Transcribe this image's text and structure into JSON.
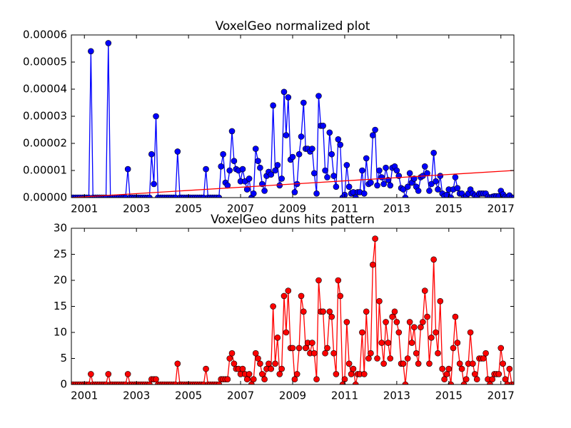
{
  "chart_data": [
    {
      "type": "line",
      "title": "VoxelGeo normalized plot",
      "xlim": [
        2000.5,
        2017.5
      ],
      "xticks": [
        2001,
        2003,
        2005,
        2007,
        2009,
        2011,
        2013,
        2015,
        2017
      ],
      "ylim": [
        0,
        6e-05
      ],
      "yticks": [
        {
          "value": 0,
          "label": "0.00000"
        },
        {
          "value": 1e-05,
          "label": "0.00001"
        },
        {
          "value": 2e-05,
          "label": "0.00002"
        },
        {
          "value": 3e-05,
          "label": "0.00003"
        },
        {
          "value": 4e-05,
          "label": "0.00004"
        },
        {
          "value": 5e-05,
          "label": "0.00005"
        },
        {
          "value": 6e-05,
          "label": "0.00006"
        }
      ],
      "series": [
        {
          "color": "#0000ff",
          "marker": true,
          "x": [
            2000.5,
            2000.58,
            2000.67,
            2000.75,
            2000.83,
            2000.92,
            2001,
            2001.08,
            2001.17,
            2001.25,
            2001.33,
            2001.42,
            2001.5,
            2001.58,
            2001.67,
            2001.75,
            2001.83,
            2001.92,
            2002,
            2002.08,
            2002.17,
            2002.25,
            2002.33,
            2002.42,
            2002.5,
            2002.58,
            2002.67,
            2002.75,
            2002.83,
            2002.92,
            2003,
            2003.08,
            2003.17,
            2003.25,
            2003.33,
            2003.42,
            2003.5,
            2003.58,
            2003.67,
            2003.75,
            2003.83,
            2003.92,
            2004,
            2004.08,
            2004.17,
            2004.25,
            2004.33,
            2004.42,
            2004.5,
            2004.58,
            2004.67,
            2004.75,
            2004.83,
            2004.92,
            2005,
            2005.08,
            2005.17,
            2005.25,
            2005.33,
            2005.42,
            2005.5,
            2005.58,
            2005.67,
            2005.75,
            2005.83,
            2005.92,
            2006,
            2006.08,
            2006.17,
            2006.25,
            2006.33,
            2006.42,
            2006.5,
            2006.58,
            2006.67,
            2006.75,
            2006.83,
            2006.92,
            2007,
            2007.08,
            2007.17,
            2007.25,
            2007.33,
            2007.42,
            2007.5,
            2007.58,
            2007.67,
            2007.75,
            2007.83,
            2007.92,
            2008,
            2008.08,
            2008.17,
            2008.25,
            2008.33,
            2008.42,
            2008.5,
            2008.58,
            2008.67,
            2008.75,
            2008.83,
            2008.92,
            2009,
            2009.08,
            2009.17,
            2009.25,
            2009.33,
            2009.42,
            2009.5,
            2009.58,
            2009.67,
            2009.75,
            2009.83,
            2009.92,
            2010,
            2010.08,
            2010.17,
            2010.25,
            2010.33,
            2010.42,
            2010.5,
            2010.58,
            2010.67,
            2010.75,
            2010.83,
            2010.92,
            2011,
            2011.08,
            2011.17,
            2011.25,
            2011.33,
            2011.42,
            2011.5,
            2011.58,
            2011.67,
            2011.75,
            2011.83,
            2011.92,
            2012,
            2012.08,
            2012.17,
            2012.25,
            2012.33,
            2012.42,
            2012.5,
            2012.58,
            2012.67,
            2012.75,
            2012.83,
            2012.92,
            2013,
            2013.08,
            2013.17,
            2013.25,
            2013.33,
            2013.42,
            2013.5,
            2013.58,
            2013.67,
            2013.75,
            2013.83,
            2013.92,
            2014,
            2014.08,
            2014.17,
            2014.25,
            2014.33,
            2014.42,
            2014.5,
            2014.58,
            2014.67,
            2014.75,
            2014.83,
            2014.92,
            2015,
            2015.08,
            2015.17,
            2015.25,
            2015.33,
            2015.42,
            2015.5,
            2015.58,
            2015.67,
            2015.75,
            2015.83,
            2015.92,
            2016,
            2016.08,
            2016.17,
            2016.25,
            2016.33,
            2016.42,
            2016.5,
            2016.58,
            2016.67,
            2016.75,
            2016.83,
            2016.92,
            2017,
            2017.08,
            2017.17,
            2017.25,
            2017.33,
            2017.42,
            2017.5
          ],
          "values": [
            0,
            0,
            0,
            0,
            0,
            0,
            0,
            0,
            0,
            5.4e-05,
            0,
            0,
            0,
            0,
            0,
            0,
            0,
            5.7e-05,
            0,
            0,
            0,
            0,
            0,
            0,
            0,
            0,
            1.05e-05,
            0,
            0,
            0,
            0,
            0,
            0,
            0,
            0,
            0,
            0,
            1.6e-05,
            5e-06,
            3e-05,
            0,
            0,
            0,
            0,
            0,
            0,
            0,
            0,
            0,
            1.7e-05,
            0,
            0,
            0,
            0,
            0,
            0,
            0,
            0,
            0,
            0,
            0,
            0,
            1.05e-05,
            0,
            0,
            0,
            0,
            0,
            0,
            1.15e-05,
            1.6e-05,
            5.5e-06,
            4.5e-06,
            1e-05,
            2.45e-05,
            1.35e-05,
            1.05e-05,
            1e-05,
            6e-06,
            1.05e-05,
            6e-06,
            3e-06,
            7e-06,
            0,
            1.5e-06,
            1.8e-05,
            1.35e-05,
            1.1e-05,
            5e-06,
            2.5e-06,
            8e-06,
            9.5e-06,
            8.5e-06,
            3.4e-05,
            1e-05,
            1.2e-05,
            4.5e-06,
            7e-06,
            3.9e-05,
            2.3e-05,
            3.7e-05,
            1.4e-05,
            1.5e-05,
            2e-06,
            5e-06,
            1.6e-05,
            2.25e-05,
            3.5e-05,
            1.8e-05,
            1.8e-05,
            1.7e-05,
            1.8e-05,
            9e-06,
            1.5e-06,
            3.75e-05,
            2.65e-05,
            2.65e-05,
            1e-05,
            7.5e-06,
            2.4e-05,
            1.6e-05,
            8e-06,
            4e-06,
            2.15e-05,
            1.95e-05,
            0,
            1e-06,
            1.2e-05,
            4e-06,
            1.5e-06,
            2e-06,
            0,
            2e-06,
            2e-06,
            1e-05,
            1.5e-06,
            1.45e-05,
            5e-06,
            5.5e-06,
            2.3e-05,
            2.5e-05,
            4.5e-06,
            1e-05,
            7.5e-06,
            5e-06,
            1.1e-05,
            6.5e-06,
            4.5e-06,
            1.1e-05,
            1.15e-05,
            1e-05,
            8e-06,
            3.5e-06,
            3e-06,
            0,
            4e-06,
            9e-06,
            5.5e-06,
            7e-06,
            4e-06,
            2.5e-06,
            7.5e-06,
            8e-06,
            1.15e-05,
            9e-06,
            2.5e-06,
            5e-06,
            1.65e-05,
            6e-06,
            3e-06,
            8e-06,
            1.5e-06,
            5e-07,
            1e-06,
            3e-06,
            0,
            3e-06,
            7.5e-06,
            3.5e-06,
            1.5e-06,
            1.5e-06,
            0,
            5e-07,
            1.5e-06,
            3e-06,
            1.5e-06,
            8e-07,
            3e-07,
            1.5e-06,
            1.5e-06,
            1.5e-06,
            1.5e-06,
            3e-07,
            0,
            3e-07,
            5e-07,
            5e-07,
            5e-07,
            2.5e-06,
            1.2e-06,
            3e-07,
            0,
            8e-07,
            0,
            0
          ]
        },
        {
          "color": "#ff0000",
          "marker": false,
          "x": [
            2000.5,
            2017.5
          ],
          "values": [
            0,
            1e-05
          ]
        }
      ]
    },
    {
      "type": "line",
      "title": "VoxelGeo duns hits pattern",
      "xlim": [
        2000.5,
        2017.5
      ],
      "xticks": [
        2001,
        2003,
        2005,
        2007,
        2009,
        2011,
        2013,
        2015,
        2017
      ],
      "ylim": [
        0,
        30
      ],
      "yticks": [
        0,
        5,
        10,
        15,
        20,
        25,
        30
      ],
      "series": [
        {
          "color": "#ff0000",
          "marker": true,
          "x": [
            2000.5,
            2000.58,
            2000.67,
            2000.75,
            2000.83,
            2000.92,
            2001,
            2001.08,
            2001.17,
            2001.25,
            2001.33,
            2001.42,
            2001.5,
            2001.58,
            2001.67,
            2001.75,
            2001.83,
            2001.92,
            2002,
            2002.08,
            2002.17,
            2002.25,
            2002.33,
            2002.42,
            2002.5,
            2002.58,
            2002.67,
            2002.75,
            2002.83,
            2002.92,
            2003,
            2003.08,
            2003.17,
            2003.25,
            2003.33,
            2003.42,
            2003.5,
            2003.58,
            2003.67,
            2003.75,
            2003.83,
            2003.92,
            2004,
            2004.08,
            2004.17,
            2004.25,
            2004.33,
            2004.42,
            2004.5,
            2004.58,
            2004.67,
            2004.75,
            2004.83,
            2004.92,
            2005,
            2005.08,
            2005.17,
            2005.25,
            2005.33,
            2005.42,
            2005.5,
            2005.58,
            2005.67,
            2005.75,
            2005.83,
            2005.92,
            2006,
            2006.08,
            2006.17,
            2006.25,
            2006.33,
            2006.42,
            2006.5,
            2006.58,
            2006.67,
            2006.75,
            2006.83,
            2006.92,
            2007,
            2007.08,
            2007.17,
            2007.25,
            2007.33,
            2007.42,
            2007.5,
            2007.58,
            2007.67,
            2007.75,
            2007.83,
            2007.92,
            2008,
            2008.08,
            2008.17,
            2008.25,
            2008.33,
            2008.42,
            2008.5,
            2008.58,
            2008.67,
            2008.75,
            2008.83,
            2008.92,
            2009,
            2009.08,
            2009.17,
            2009.25,
            2009.33,
            2009.42,
            2009.5,
            2009.58,
            2009.67,
            2009.75,
            2009.83,
            2009.92,
            2010,
            2010.08,
            2010.17,
            2010.25,
            2010.33,
            2010.42,
            2010.5,
            2010.58,
            2010.67,
            2010.75,
            2010.83,
            2010.92,
            2011,
            2011.08,
            2011.17,
            2011.25,
            2011.33,
            2011.42,
            2011.5,
            2011.58,
            2011.67,
            2011.75,
            2011.83,
            2011.92,
            2012,
            2012.08,
            2012.17,
            2012.25,
            2012.33,
            2012.42,
            2012.5,
            2012.58,
            2012.67,
            2012.75,
            2012.83,
            2012.92,
            2013,
            2013.08,
            2013.17,
            2013.25,
            2013.33,
            2013.42,
            2013.5,
            2013.58,
            2013.67,
            2013.75,
            2013.83,
            2013.92,
            2014,
            2014.08,
            2014.17,
            2014.25,
            2014.33,
            2014.42,
            2014.5,
            2014.58,
            2014.67,
            2014.75,
            2014.83,
            2014.92,
            2015,
            2015.08,
            2015.17,
            2015.25,
            2015.33,
            2015.42,
            2015.5,
            2015.58,
            2015.67,
            2015.75,
            2015.83,
            2015.92,
            2016,
            2016.08,
            2016.17,
            2016.25,
            2016.33,
            2016.42,
            2016.5,
            2016.58,
            2016.67,
            2016.75,
            2016.83,
            2016.92,
            2017,
            2017.08,
            2017.17,
            2017.25,
            2017.33,
            2017.42,
            2017.5
          ],
          "values": [
            0,
            0,
            0,
            0,
            0,
            0,
            0,
            0,
            0,
            2,
            0,
            0,
            0,
            0,
            0,
            0,
            0,
            2,
            0,
            0,
            0,
            0,
            0,
            0,
            0,
            0,
            2,
            0,
            0,
            0,
            0,
            0,
            0,
            0,
            0,
            0,
            0,
            1,
            1,
            1,
            0,
            0,
            0,
            0,
            0,
            0,
            0,
            0,
            0,
            4,
            0,
            0,
            0,
            0,
            0,
            0,
            0,
            0,
            0,
            0,
            0,
            0,
            3,
            0,
            0,
            0,
            0,
            0,
            0,
            1,
            1,
            1,
            1,
            5,
            6,
            4,
            3,
            3,
            2,
            3,
            2,
            1,
            2,
            0,
            1,
            6,
            5,
            4,
            2,
            1,
            3,
            4,
            3,
            15,
            4,
            9,
            2,
            3,
            17,
            10,
            18,
            7,
            7,
            1,
            2,
            7,
            17,
            14,
            7,
            8,
            6,
            8,
            6,
            1,
            20,
            14,
            14,
            6,
            7,
            14,
            13,
            6,
            2,
            20,
            17,
            0,
            1,
            12,
            4,
            2,
            3,
            0,
            2,
            2,
            10,
            2,
            14,
            5,
            6,
            23,
            28,
            5,
            16,
            8,
            4,
            12,
            8,
            5,
            13,
            14,
            12,
            10,
            4,
            4,
            0,
            5,
            12,
            8,
            11,
            6,
            4,
            11,
            12,
            18,
            13,
            4,
            9,
            24,
            10,
            6,
            16,
            3,
            1,
            2,
            3,
            0,
            7,
            13,
            8,
            4,
            3,
            0,
            1,
            4,
            10,
            4,
            2,
            1,
            5,
            5,
            5,
            6,
            1,
            0,
            1,
            2,
            2,
            2,
            7,
            4,
            1,
            0,
            3,
            0,
            0
          ]
        }
      ]
    }
  ]
}
